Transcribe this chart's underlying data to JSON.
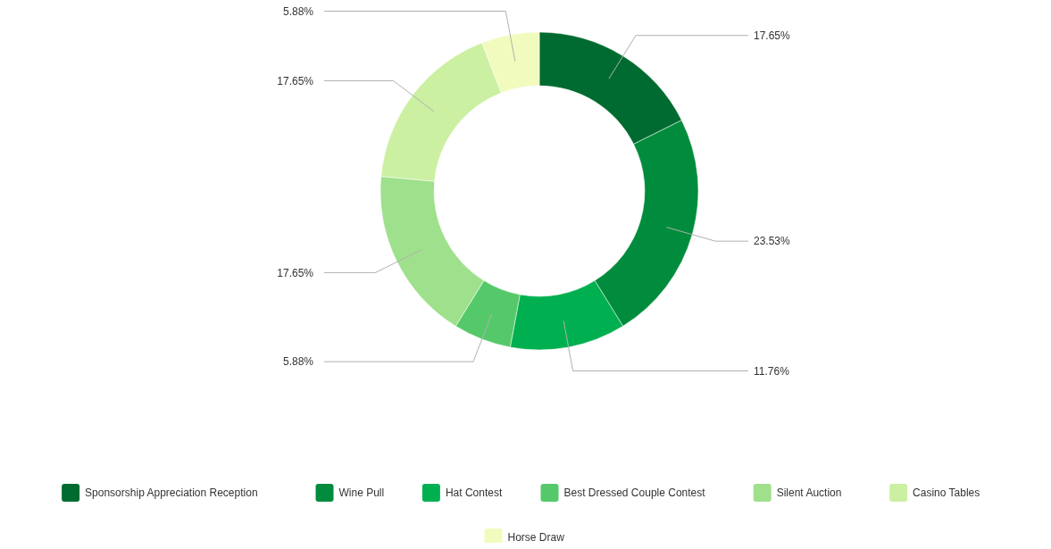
{
  "chart_data": {
    "type": "donut",
    "categories": [
      "Sponsorship Appreciation Reception",
      "Wine Pull",
      "Hat Contest",
      "Best Dressed Couple Contest",
      "Silent Auction",
      "Casino Tables",
      "Horse Draw"
    ],
    "values": [
      17.65,
      23.53,
      11.76,
      5.88,
      17.65,
      17.65,
      5.88
    ],
    "colors": [
      "#006b30",
      "#008c3c",
      "#00b050",
      "#55c96a",
      "#9fe08c",
      "#cbf0a2",
      "#f1fbbd"
    ],
    "value_labels": [
      "17.65%",
      "23.53%",
      "11.76%",
      "5.88%",
      "17.65%",
      "17.65%",
      "5.88%"
    ],
    "legend": "bottom"
  }
}
